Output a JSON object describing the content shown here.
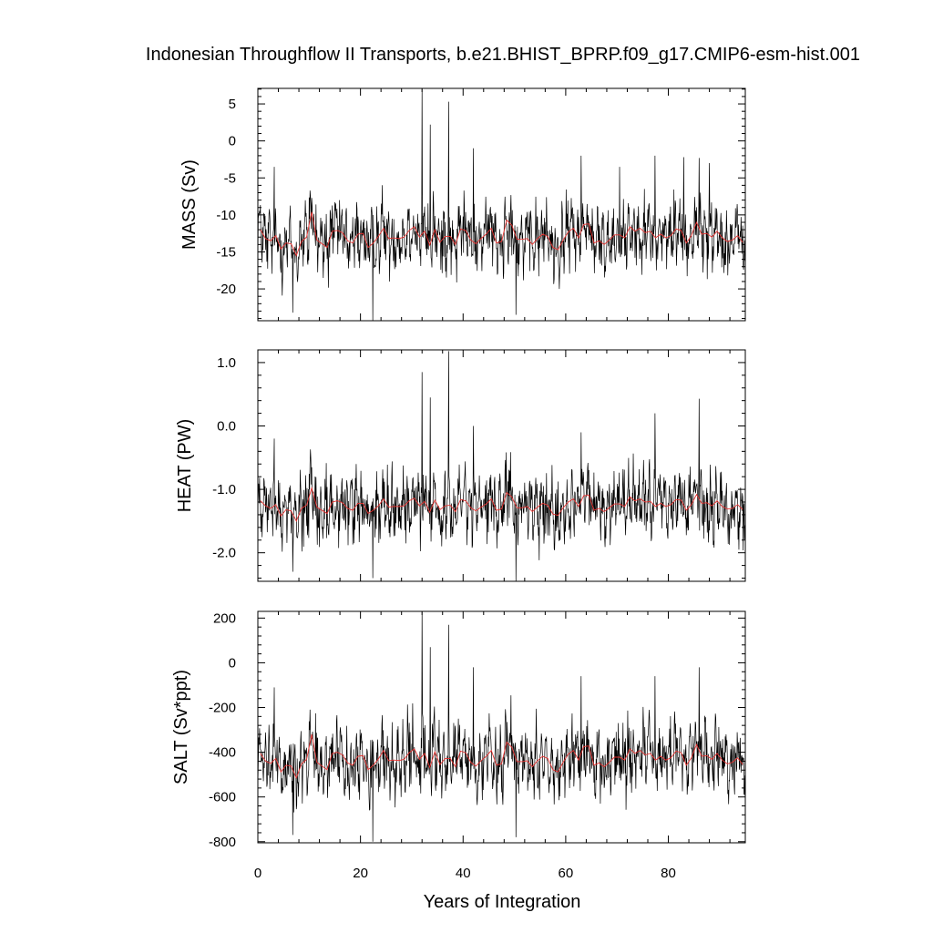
{
  "title": "Indonesian Throughflow II Transports, b.e21.BHIST_BPRP.f09_g17.CMIP6-esm-hist.001",
  "xlabel": "Years of Integration",
  "chart_data": [
    {
      "type": "line",
      "ylabel": "MASS (Sv)",
      "xlim": [
        0,
        95
      ],
      "ylim": [
        -24.3,
        7.1
      ],
      "x_ticks": [
        0,
        20,
        40,
        60,
        80
      ],
      "x_tick_labels": [
        "0",
        "20",
        "40",
        "60",
        "80"
      ],
      "y_ticks": [
        5,
        0,
        -5,
        -10,
        -15,
        -20
      ],
      "y_tick_labels": [
        "5",
        "0",
        "-5",
        "-10",
        "-15",
        "-20"
      ],
      "series": [
        {
          "kind": "monthly",
          "color": "#000000",
          "base_mean": -13.2,
          "spread": 3.4,
          "spikes": [
            {
              "x": 32.0,
              "y": 7.1
            },
            {
              "x": 33.6,
              "y": 2.2
            },
            {
              "x": 37.2,
              "y": 5.3
            },
            {
              "x": 22.4,
              "y": -24.3
            },
            {
              "x": 6.8,
              "y": -23.2
            },
            {
              "x": 50.3,
              "y": -23.5
            },
            {
              "x": 3.2,
              "y": -3.5
            },
            {
              "x": 42.0,
              "y": -1.0
            },
            {
              "x": 63.0,
              "y": -2.0
            },
            {
              "x": 70.5,
              "y": -3.5
            },
            {
              "x": 77.4,
              "y": -2.0
            },
            {
              "x": 83.0,
              "y": -2.2
            },
            {
              "x": 86.0,
              "y": -2.3
            },
            {
              "x": 88.0,
              "y": -3.0
            }
          ]
        },
        {
          "kind": "annual-mean",
          "color": "#e8312f",
          "values": [
            -12.0,
            -13.2,
            -13.5,
            -12.8,
            -14.6,
            -13.8,
            -13.9,
            -15.5,
            -13.6,
            -13.0,
            -9.6,
            -13.4,
            -13.9,
            -14.4,
            -12.2,
            -12.1,
            -12.4,
            -13.5,
            -13.8,
            -12.6,
            -12.5,
            -14.4,
            -13.8,
            -12.9,
            -11.8,
            -13.2,
            -13.1,
            -13.2,
            -13.0,
            -12.1,
            -11.6,
            -13.0,
            -12.2,
            -14.1,
            -12.0,
            -13.7,
            -12.9,
            -12.9,
            -14.0,
            -11.9,
            -12.1,
            -13.4,
            -13.9,
            -13.2,
            -12.6,
            -11.8,
            -13.8,
            -13.6,
            -10.7,
            -11.4,
            -13.3,
            -13.3,
            -13.2,
            -14.0,
            -13.2,
            -12.6,
            -12.9,
            -14.4,
            -14.7,
            -13.4,
            -12.3,
            -11.8,
            -13.1,
            -11.3,
            -11.2,
            -13.8,
            -13.5,
            -14.0,
            -13.4,
            -12.7,
            -12.7,
            -13.1,
            -11.6,
            -12.2,
            -11.8,
            -12.4,
            -12.2,
            -13.1,
            -12.6,
            -13.1,
            -12.8,
            -11.9,
            -12.1,
            -13.8,
            -12.8,
            -11.0,
            -12.6,
            -12.5,
            -13.0,
            -12.2,
            -13.1,
            -13.6,
            -13.4,
            -12.8,
            -13.7
          ]
        }
      ]
    },
    {
      "type": "line",
      "ylabel": "HEAT (PW)",
      "xlim": [
        0,
        95
      ],
      "ylim": [
        -2.45,
        1.2
      ],
      "x_ticks": [
        0,
        20,
        40,
        60,
        80
      ],
      "x_tick_labels": [
        "0",
        "20",
        "40",
        "60",
        "80"
      ],
      "y_ticks": [
        1.0,
        0.0,
        -1.0,
        -2.0
      ],
      "y_tick_labels": [
        "1.0",
        "0.0",
        "-1.0",
        "-2.0"
      ],
      "series": [
        {
          "kind": "monthly",
          "color": "#000000",
          "base_mean": -1.28,
          "spread": 0.42,
          "spikes": [
            {
              "x": 32.0,
              "y": 0.85
            },
            {
              "x": 33.6,
              "y": 0.45
            },
            {
              "x": 37.2,
              "y": 1.18
            },
            {
              "x": 22.4,
              "y": -2.4
            },
            {
              "x": 6.8,
              "y": -2.3
            },
            {
              "x": 50.3,
              "y": -2.45
            },
            {
              "x": 3.2,
              "y": -0.2
            },
            {
              "x": 42.0,
              "y": 0.0
            },
            {
              "x": 77.4,
              "y": 0.2
            },
            {
              "x": 86.0,
              "y": 0.43
            },
            {
              "x": 63.0,
              "y": -0.1
            }
          ]
        },
        {
          "kind": "annual-mean",
          "color": "#e8312f",
          "values": [
            -1.18,
            -1.26,
            -1.3,
            -1.24,
            -1.42,
            -1.32,
            -1.34,
            -1.5,
            -1.3,
            -1.25,
            -0.98,
            -1.28,
            -1.33,
            -1.38,
            -1.2,
            -1.18,
            -1.21,
            -1.3,
            -1.33,
            -1.22,
            -1.22,
            -1.38,
            -1.33,
            -1.26,
            -1.15,
            -1.28,
            -1.27,
            -1.27,
            -1.26,
            -1.18,
            -1.14,
            -1.26,
            -1.19,
            -1.36,
            -1.17,
            -1.32,
            -1.26,
            -1.25,
            -1.35,
            -1.16,
            -1.18,
            -1.29,
            -1.34,
            -1.28,
            -1.23,
            -1.15,
            -1.33,
            -1.31,
            -1.05,
            -1.12,
            -1.29,
            -1.29,
            -1.27,
            -1.35,
            -1.28,
            -1.22,
            -1.25,
            -1.39,
            -1.41,
            -1.29,
            -1.2,
            -1.15,
            -1.27,
            -1.1,
            -1.09,
            -1.33,
            -1.3,
            -1.35,
            -1.29,
            -1.23,
            -1.23,
            -1.27,
            -1.12,
            -1.18,
            -1.15,
            -1.2,
            -1.19,
            -1.27,
            -1.22,
            -1.27,
            -1.24,
            -1.16,
            -1.17,
            -1.33,
            -1.24,
            -1.08,
            -1.22,
            -1.21,
            -1.26,
            -1.18,
            -1.27,
            -1.31,
            -1.3,
            -1.24,
            -1.32
          ]
        }
      ]
    },
    {
      "type": "line",
      "ylabel": "SALT (Sv*ppt)",
      "xlim": [
        0,
        95
      ],
      "ylim": [
        -805,
        230
      ],
      "x_ticks": [
        0,
        20,
        40,
        60,
        80
      ],
      "x_tick_labels": [
        "0",
        "20",
        "40",
        "60",
        "80"
      ],
      "y_ticks": [
        200,
        0,
        -200,
        -400,
        -600,
        -800
      ],
      "y_tick_labels": [
        "200",
        "0",
        "-200",
        "-400",
        "-600",
        "-800"
      ],
      "series": [
        {
          "kind": "monthly",
          "color": "#000000",
          "base_mean": -450,
          "spread": 115,
          "spikes": [
            {
              "x": 32.0,
              "y": 230
            },
            {
              "x": 33.6,
              "y": 70
            },
            {
              "x": 37.2,
              "y": 170
            },
            {
              "x": 22.4,
              "y": -800
            },
            {
              "x": 6.8,
              "y": -770
            },
            {
              "x": 50.3,
              "y": -780
            },
            {
              "x": 3.2,
              "y": -110
            },
            {
              "x": 42.0,
              "y": -20
            },
            {
              "x": 77.4,
              "y": -60
            },
            {
              "x": 86.0,
              "y": -20
            },
            {
              "x": 63.0,
              "y": -60
            }
          ]
        },
        {
          "kind": "annual-mean",
          "color": "#e8312f",
          "values": [
            -405,
            -440,
            -450,
            -428,
            -488,
            -458,
            -462,
            -515,
            -452,
            -432,
            -320,
            -445,
            -462,
            -478,
            -405,
            -400,
            -412,
            -448,
            -458,
            -418,
            -415,
            -478,
            -458,
            -430,
            -392,
            -438,
            -435,
            -437,
            -432,
            -402,
            -385,
            -432,
            -405,
            -468,
            -398,
            -455,
            -428,
            -428,
            -465,
            -395,
            -402,
            -445,
            -462,
            -438,
            -418,
            -392,
            -458,
            -452,
            -355,
            -378,
            -442,
            -442,
            -438,
            -465,
            -438,
            -418,
            -428,
            -478,
            -488,
            -445,
            -408,
            -392,
            -435,
            -375,
            -372,
            -458,
            -448,
            -465,
            -445,
            -422,
            -422,
            -435,
            -385,
            -405,
            -392,
            -412,
            -405,
            -435,
            -418,
            -435,
            -425,
            -395,
            -402,
            -458,
            -425,
            -365,
            -418,
            -415,
            -432,
            -405,
            -435,
            -452,
            -445,
            -425,
            -455
          ]
        }
      ]
    }
  ]
}
